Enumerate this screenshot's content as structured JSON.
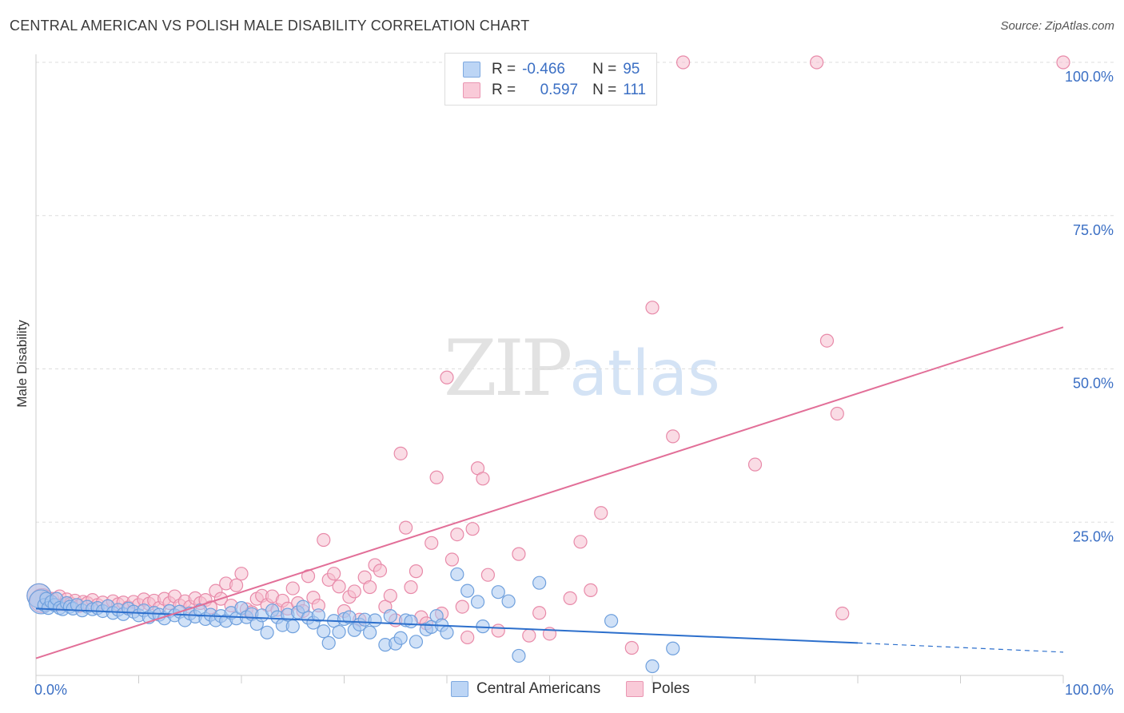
{
  "header": {
    "title": "CENTRAL AMERICAN VS POLISH MALE DISABILITY CORRELATION CHART",
    "source": "Source: ZipAtlas.com"
  },
  "legend": {
    "row1": {
      "r_label": "R =",
      "r_value": "-0.466",
      "n_label": "N =",
      "n_value": "95"
    },
    "row2": {
      "r_label": "R =",
      "r_value": "0.597",
      "n_label": "N =",
      "n_value": "111"
    }
  },
  "watermark": {
    "zip": "ZIP",
    "atlas": "atlas"
  },
  "colors": {
    "blue_fill": "#a9c9f1",
    "blue_stroke": "#6fa0dd",
    "blue_line": "#2c6fcc",
    "pink_fill": "#f6bfd0",
    "pink_stroke": "#e88aa9",
    "pink_line": "#e26f98",
    "axis_label": "#3b6fc4"
  },
  "chart_data": {
    "type": "scatter",
    "title": "CENTRAL AMERICAN VS POLISH MALE DISABILITY CORRELATION CHART",
    "xlabel": "",
    "ylabel": "Male Disability",
    "xlim": [
      0,
      100
    ],
    "ylim": [
      0,
      100
    ],
    "x_tick_labels": [
      "0.0%",
      "100.0%"
    ],
    "y_tick_labels": [
      "25.0%",
      "50.0%",
      "75.0%",
      "100.0%"
    ],
    "y_ticks": [
      25,
      50,
      75,
      100
    ],
    "grid": true,
    "legend_position": "bottom",
    "series": [
      {
        "name": "Central Americans",
        "r": -0.466,
        "n": 95,
        "trend": {
          "x": [
            0,
            80
          ],
          "y": [
            10.9,
            5.3
          ],
          "dashed_to": [
            100,
            3.8
          ]
        },
        "points": [
          [
            0.3,
            13.0
          ],
          [
            0.5,
            12.0
          ],
          [
            0.8,
            11.5
          ],
          [
            1,
            12.5
          ],
          [
            1.2,
            11.0
          ],
          [
            1.5,
            12.0
          ],
          [
            1.8,
            11.5
          ],
          [
            2,
            12.5
          ],
          [
            2.3,
            11.0
          ],
          [
            2.6,
            10.8
          ],
          [
            3,
            11.8
          ],
          [
            3.3,
            11.2
          ],
          [
            3.6,
            10.9
          ],
          [
            4,
            11.5
          ],
          [
            4.5,
            10.6
          ],
          [
            5,
            11.2
          ],
          [
            5.5,
            10.8
          ],
          [
            6,
            11.0
          ],
          [
            6.5,
            10.5
          ],
          [
            7,
            11.3
          ],
          [
            7.5,
            10.2
          ],
          [
            8,
            10.7
          ],
          [
            8.5,
            10.0
          ],
          [
            9,
            10.9
          ],
          [
            9.5,
            10.4
          ],
          [
            10,
            9.8
          ],
          [
            10.5,
            10.6
          ],
          [
            11,
            9.5
          ],
          [
            11.5,
            10.2
          ],
          [
            12,
            9.9
          ],
          [
            12.5,
            9.3
          ],
          [
            13,
            10.5
          ],
          [
            13.5,
            9.8
          ],
          [
            14,
            10.4
          ],
          [
            14.5,
            9.0
          ],
          [
            15,
            10.1
          ],
          [
            15.5,
            9.6
          ],
          [
            16,
            10.6
          ],
          [
            16.5,
            9.2
          ],
          [
            17,
            9.9
          ],
          [
            17.5,
            9.0
          ],
          [
            18,
            9.7
          ],
          [
            18.5,
            8.9
          ],
          [
            19,
            10.2
          ],
          [
            19.5,
            9.3
          ],
          [
            20,
            11.0
          ],
          [
            20.5,
            9.5
          ],
          [
            21,
            10.0
          ],
          [
            21.5,
            8.4
          ],
          [
            22,
            9.8
          ],
          [
            22.5,
            7.0
          ],
          [
            23,
            10.6
          ],
          [
            23.5,
            9.5
          ],
          [
            24,
            8.2
          ],
          [
            24.5,
            9.9
          ],
          [
            25,
            8.0
          ],
          [
            25.5,
            10.3
          ],
          [
            26,
            11.2
          ],
          [
            26.5,
            9.4
          ],
          [
            27,
            8.6
          ],
          [
            27.5,
            9.8
          ],
          [
            28,
            7.2
          ],
          [
            28.5,
            5.3
          ],
          [
            29,
            8.9
          ],
          [
            29.5,
            7.1
          ],
          [
            30,
            9.2
          ],
          [
            30.5,
            9.5
          ],
          [
            31,
            7.4
          ],
          [
            31.5,
            8.3
          ],
          [
            32,
            9.1
          ],
          [
            32.5,
            7.0
          ],
          [
            33,
            9.0
          ],
          [
            34,
            5.0
          ],
          [
            34.5,
            9.7
          ],
          [
            35,
            5.2
          ],
          [
            35.5,
            6.1
          ],
          [
            36,
            9.0
          ],
          [
            36.5,
            8.8
          ],
          [
            37,
            5.5
          ],
          [
            38,
            7.5
          ],
          [
            38.5,
            7.9
          ],
          [
            39,
            9.7
          ],
          [
            39.5,
            8.2
          ],
          [
            40,
            7.0
          ],
          [
            41,
            16.5
          ],
          [
            42,
            13.8
          ],
          [
            43,
            12.0
          ],
          [
            43.5,
            8.0
          ],
          [
            45,
            13.6
          ],
          [
            46,
            12.1
          ],
          [
            47,
            3.2
          ],
          [
            49,
            15.1
          ],
          [
            56,
            8.9
          ],
          [
            60,
            1.5
          ],
          [
            62,
            4.4
          ]
        ]
      },
      {
        "name": "Poles",
        "r": 0.597,
        "n": 111,
        "trend": {
          "x": [
            0,
            100
          ],
          "y": [
            2.8,
            56.8
          ]
        },
        "points": [
          [
            0.3,
            13.0
          ],
          [
            0.6,
            12.2
          ],
          [
            1,
            12.8
          ],
          [
            1.3,
            11.8
          ],
          [
            1.6,
            12.5
          ],
          [
            2,
            11.5
          ],
          [
            2.3,
            12.9
          ],
          [
            2.7,
            11.6
          ],
          [
            3,
            12.4
          ],
          [
            3.4,
            11.7
          ],
          [
            3.8,
            12.2
          ],
          [
            4.2,
            11.3
          ],
          [
            4.6,
            12.0
          ],
          [
            5,
            11.8
          ],
          [
            5.5,
            12.3
          ],
          [
            6,
            11.5
          ],
          [
            6.5,
            11.9
          ],
          [
            7,
            11.3
          ],
          [
            7.5,
            12.1
          ],
          [
            8,
            11.6
          ],
          [
            8.5,
            11.9
          ],
          [
            9,
            11.1
          ],
          [
            9.5,
            12.0
          ],
          [
            10,
            11.5
          ],
          [
            10.5,
            12.4
          ],
          [
            11,
            11.7
          ],
          [
            11.5,
            12.2
          ],
          [
            12,
            11.0
          ],
          [
            12.5,
            12.5
          ],
          [
            13,
            11.8
          ],
          [
            13.5,
            12.9
          ],
          [
            14,
            11.4
          ],
          [
            14.5,
            12.1
          ],
          [
            15,
            11.2
          ],
          [
            15.5,
            12.6
          ],
          [
            16,
            11.8
          ],
          [
            16.5,
            12.3
          ],
          [
            17,
            11.1
          ],
          [
            17.5,
            13.8
          ],
          [
            18,
            12.5
          ],
          [
            18.5,
            15.0
          ],
          [
            19,
            11.4
          ],
          [
            19.5,
            14.7
          ],
          [
            20,
            16.6
          ],
          [
            20.5,
            10.8
          ],
          [
            21,
            10.3
          ],
          [
            21.5,
            12.5
          ],
          [
            22,
            13.0
          ],
          [
            22.5,
            11.5
          ],
          [
            23,
            12.9
          ],
          [
            23.5,
            10.7
          ],
          [
            24,
            12.2
          ],
          [
            24.5,
            10.9
          ],
          [
            25,
            14.2
          ],
          [
            25.5,
            11.8
          ],
          [
            26,
            10.5
          ],
          [
            26.5,
            16.2
          ],
          [
            27,
            12.7
          ],
          [
            27.5,
            11.4
          ],
          [
            28,
            22.1
          ],
          [
            28.5,
            15.6
          ],
          [
            29,
            16.6
          ],
          [
            29.5,
            14.5
          ],
          [
            30,
            10.5
          ],
          [
            30.5,
            12.8
          ],
          [
            31,
            13.7
          ],
          [
            31.5,
            9.1
          ],
          [
            32,
            16.0
          ],
          [
            32.5,
            14.4
          ],
          [
            33,
            18.0
          ],
          [
            33.5,
            17.1
          ],
          [
            34,
            11.2
          ],
          [
            34.5,
            13.0
          ],
          [
            35,
            9.0
          ],
          [
            35.5,
            36.2
          ],
          [
            36,
            24.1
          ],
          [
            36.5,
            14.4
          ],
          [
            37,
            17.0
          ],
          [
            37.5,
            9.5
          ],
          [
            38,
            8.5
          ],
          [
            38.5,
            21.6
          ],
          [
            39,
            32.3
          ],
          [
            39.5,
            10.1
          ],
          [
            40,
            48.6
          ],
          [
            40.5,
            18.9
          ],
          [
            41,
            23.0
          ],
          [
            41.5,
            11.2
          ],
          [
            42,
            6.2
          ],
          [
            42.5,
            23.9
          ],
          [
            43,
            33.8
          ],
          [
            43.5,
            32.1
          ],
          [
            44,
            16.4
          ],
          [
            45,
            7.3
          ],
          [
            47,
            19.8
          ],
          [
            48,
            6.5
          ],
          [
            49,
            10.2
          ],
          [
            50,
            6.8
          ],
          [
            52,
            12.6
          ],
          [
            53,
            21.8
          ],
          [
            54,
            13.9
          ],
          [
            55,
            26.5
          ],
          [
            58,
            4.5
          ],
          [
            60,
            60.0
          ],
          [
            62,
            39.0
          ],
          [
            63,
            100
          ],
          [
            70,
            34.4
          ],
          [
            76,
            100
          ],
          [
            77,
            54.6
          ],
          [
            78,
            42.7
          ],
          [
            78.5,
            10.1
          ],
          [
            100,
            100
          ]
        ]
      }
    ]
  }
}
